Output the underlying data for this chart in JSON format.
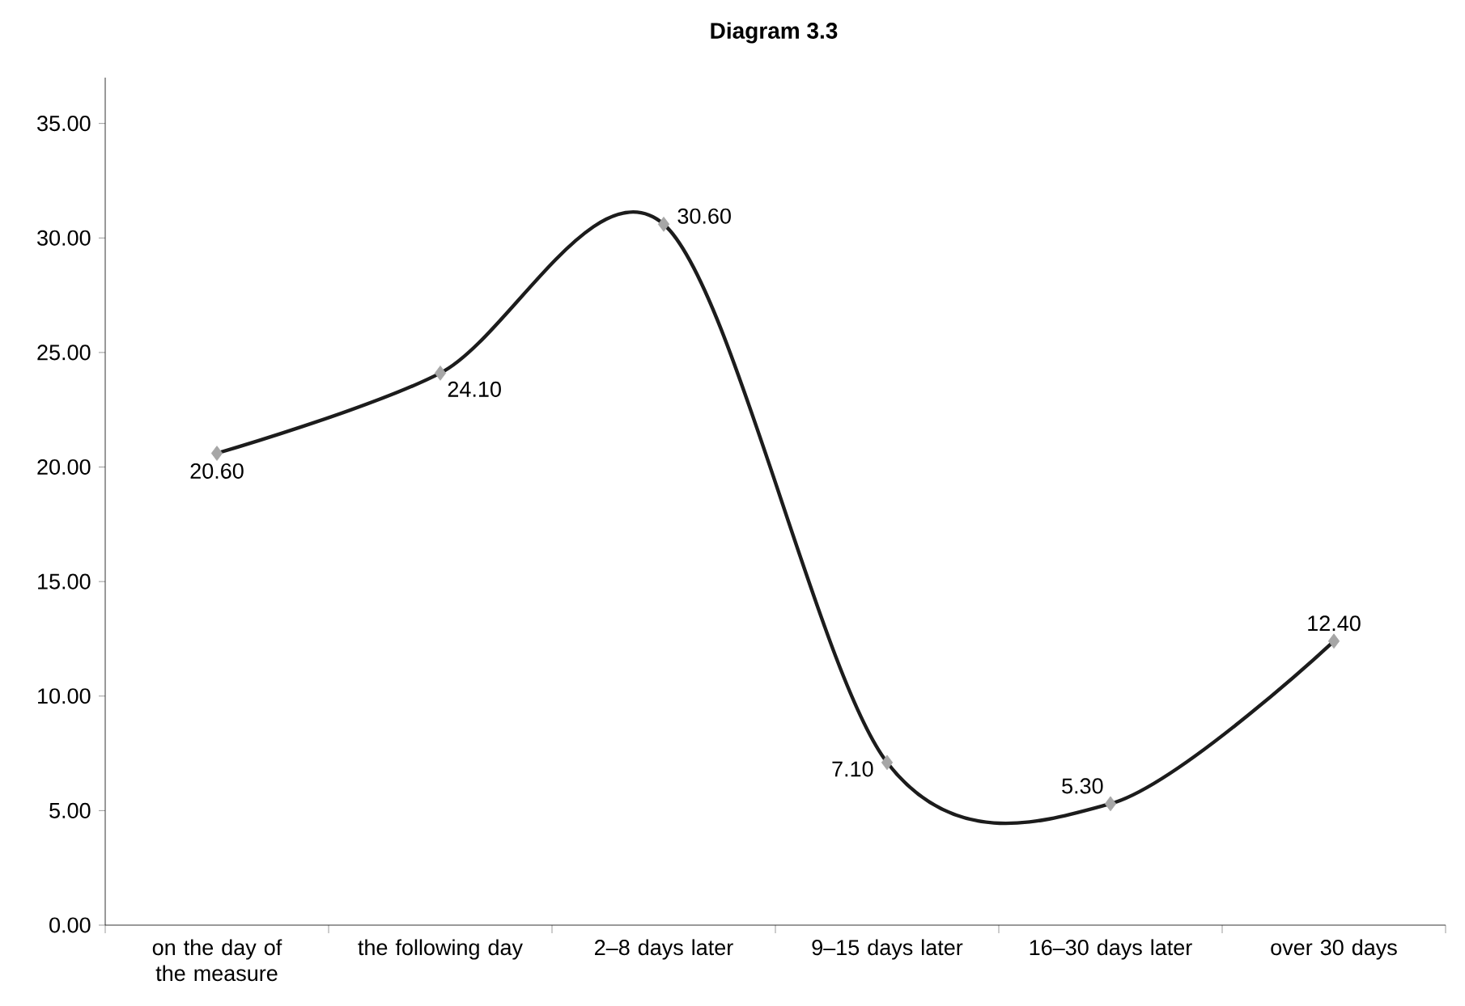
{
  "chart_data": {
    "type": "line",
    "title": "Diagram 3.3",
    "categories": [
      "on the day of the measure",
      "the following day",
      "2–8 days later",
      "9–15 days later",
      "16–30 days later",
      "over 30 days"
    ],
    "values": [
      20.6,
      24.1,
      30.6,
      7.1,
      5.3,
      12.4
    ],
    "value_labels": [
      "20.60",
      "24.10",
      "30.60",
      "7.10",
      "5.30",
      "12.40"
    ],
    "color": "#1c1c1c",
    "marker": "diamond",
    "line_style": "solid",
    "ylim": [
      0,
      37
    ],
    "yticks": [
      {
        "value": 0,
        "label": "0.00"
      },
      {
        "value": 5,
        "label": "5.00"
      },
      {
        "value": 10,
        "label": "10.00"
      },
      {
        "value": 15,
        "label": "15.00"
      },
      {
        "value": 20,
        "label": "20.00"
      },
      {
        "value": 25,
        "label": "25.00"
      },
      {
        "value": 30,
        "label": "30.00"
      },
      {
        "value": 35,
        "label": "35.00"
      }
    ]
  }
}
